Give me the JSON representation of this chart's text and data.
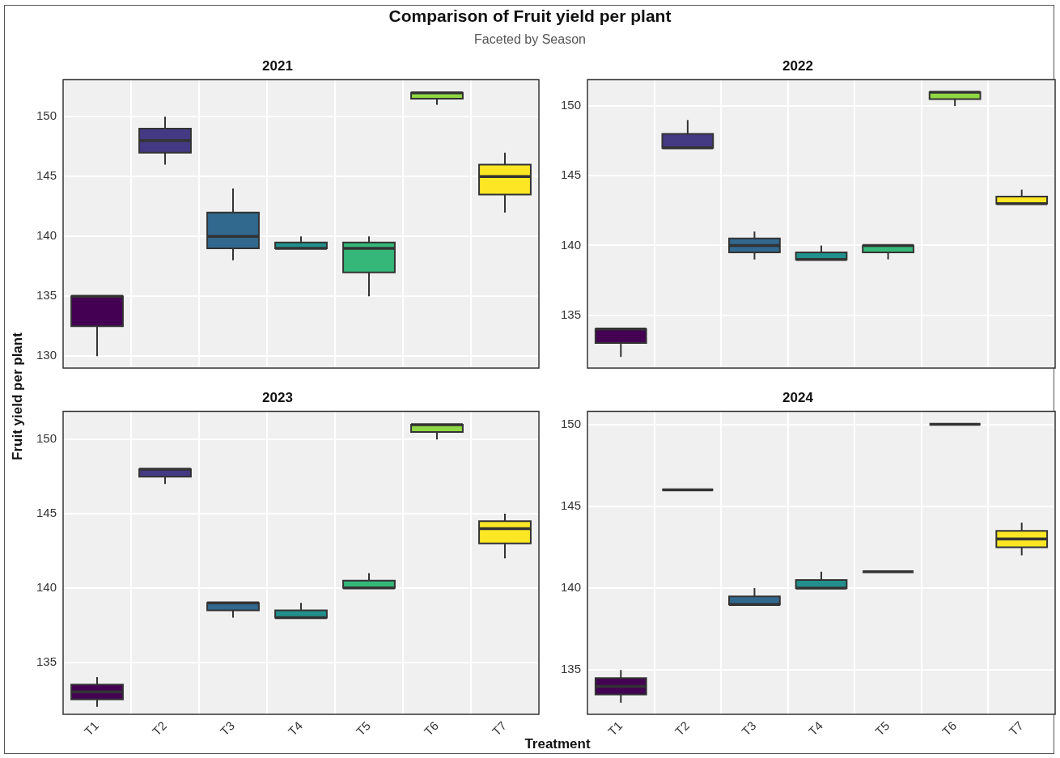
{
  "chart_data": [
    {
      "type": "box",
      "title": "2021",
      "annotations": [
        "Comparison of Fruit yield per plant",
        "Faceted by Season"
      ],
      "ylabel": "Fruit yield per plant",
      "categories": [
        null,
        null,
        null,
        null,
        null,
        null,
        null
      ],
      "colors": [
        "#440154",
        "#443983",
        "#31688e",
        "#21908c",
        "#35b779",
        "#8fd744",
        "#fde725"
      ],
      "ylim": [
        129,
        153.1
      ],
      "yticks": [
        130,
        135,
        140,
        145,
        150
      ],
      "grid": true,
      "tick_labels": "y",
      "boxes": [
        {
          "low": 130,
          "q1": 132.5,
          "median": 135,
          "q3": 135,
          "high": 135
        },
        {
          "low": 146,
          "q1": 147,
          "median": 148,
          "q3": 149,
          "high": 150
        },
        {
          "low": 138,
          "q1": 139,
          "median": 140,
          "q3": 142,
          "high": 144
        },
        {
          "low": 139,
          "q1": 139,
          "median": 139,
          "q3": 139.5,
          "high": 140
        },
        {
          "low": 135,
          "q1": 137,
          "median": 139,
          "q3": 139.5,
          "high": 140
        },
        {
          "low": 151,
          "q1": 151.5,
          "median": 152,
          "q3": 152,
          "high": 152
        },
        {
          "low": 142,
          "q1": 143.5,
          "median": 145,
          "q3": 146,
          "high": 147
        }
      ]
    },
    {
      "type": "box",
      "title": "2022",
      "categories": [
        null,
        null,
        null,
        null,
        null,
        null,
        null
      ],
      "colors": [
        "#440154",
        "#443983",
        "#31688e",
        "#21908c",
        "#35b779",
        "#8fd744",
        "#fde725"
      ],
      "ylim": [
        131.2,
        151.9
      ],
      "yticks": [
        135,
        140,
        145,
        150
      ],
      "grid": true,
      "tick_labels": "y",
      "boxes": [
        {
          "low": 132,
          "q1": 133,
          "median": 134,
          "q3": 134,
          "high": 134
        },
        {
          "low": 147,
          "q1": 147,
          "median": 147,
          "q3": 148,
          "high": 149
        },
        {
          "low": 139,
          "q1": 139.5,
          "median": 140,
          "q3": 140.5,
          "high": 141
        },
        {
          "low": 139,
          "q1": 139,
          "median": 139,
          "q3": 139.5,
          "high": 140
        },
        {
          "low": 139,
          "q1": 139.5,
          "median": 140,
          "q3": 140,
          "high": 140
        },
        {
          "low": 150,
          "q1": 150.5,
          "median": 151,
          "q3": 151,
          "high": 151
        },
        {
          "low": 143,
          "q1": 143,
          "median": 143,
          "q3": 143.5,
          "high": 144
        }
      ]
    },
    {
      "type": "box",
      "title": "2023",
      "xlabel": "Treatment",
      "categories": [
        "T1",
        "T2",
        "T3",
        "T4",
        "T5",
        "T6",
        "T7"
      ],
      "colors": [
        "#440154",
        "#443983",
        "#31688e",
        "#21908c",
        "#35b779",
        "#8fd744",
        "#fde725"
      ],
      "ylim": [
        131.5,
        151.9
      ],
      "yticks": [
        135,
        140,
        145,
        150
      ],
      "grid": true,
      "boxes": [
        {
          "low": 132,
          "q1": 132.5,
          "median": 133,
          "q3": 133.5,
          "high": 134
        },
        {
          "low": 147,
          "q1": 147.5,
          "median": 148,
          "q3": 148,
          "high": 148
        },
        {
          "low": 138,
          "q1": 138.5,
          "median": 139,
          "q3": 139,
          "high": 139
        },
        {
          "low": 138,
          "q1": 138,
          "median": 138,
          "q3": 138.5,
          "high": 139
        },
        {
          "low": 140,
          "q1": 140,
          "median": 140,
          "q3": 140.5,
          "high": 141
        },
        {
          "low": 150,
          "q1": 150.5,
          "median": 151,
          "q3": 151,
          "high": 151
        },
        {
          "low": 142,
          "q1": 143,
          "median": 144,
          "q3": 144.5,
          "high": 145
        }
      ]
    },
    {
      "type": "box",
      "title": "2024",
      "categories": [
        "T1",
        "T2",
        "T3",
        "T4",
        "T5",
        "T6",
        "T7"
      ],
      "colors": [
        "#440154",
        "#333333",
        "#31688e",
        "#21908c",
        "#333333",
        "#333333",
        "#fde725"
      ],
      "ylim": [
        132.3,
        150.8
      ],
      "yticks": [
        135,
        140,
        145,
        150
      ],
      "grid": true,
      "boxes": [
        {
          "low": 133,
          "q1": 133.5,
          "median": 134,
          "q3": 134.5,
          "high": 135
        },
        {
          "low": 146,
          "q1": 146,
          "median": 146,
          "q3": 146,
          "high": 146
        },
        {
          "low": 139,
          "q1": 139,
          "median": 139,
          "q3": 139.5,
          "high": 140
        },
        {
          "low": 140,
          "q1": 140,
          "median": 140,
          "q3": 140.5,
          "high": 141
        },
        {
          "low": 141,
          "q1": 141,
          "median": 141,
          "q3": 141,
          "high": 141
        },
        {
          "low": 150,
          "q1": 150,
          "median": 150,
          "q3": 150,
          "high": 150
        },
        {
          "low": 142,
          "q1": 142.5,
          "median": 143,
          "q3": 143.5,
          "high": 144
        }
      ]
    }
  ]
}
